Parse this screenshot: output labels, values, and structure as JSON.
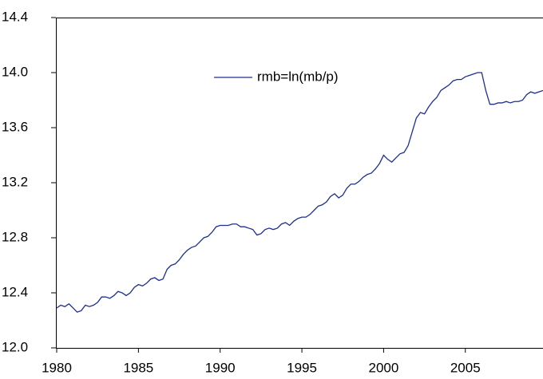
{
  "chart_data": {
    "type": "line",
    "x": [
      1980,
      1980.25,
      1980.5,
      1980.75,
      1981,
      1981.25,
      1981.5,
      1981.75,
      1982,
      1982.25,
      1982.5,
      1982.75,
      1983,
      1983.25,
      1983.5,
      1983.75,
      1984,
      1984.25,
      1984.5,
      1984.75,
      1985,
      1985.25,
      1985.5,
      1985.75,
      1986,
      1986.25,
      1986.5,
      1986.75,
      1987,
      1987.25,
      1987.5,
      1987.75,
      1988,
      1988.25,
      1988.5,
      1988.75,
      1989,
      1989.25,
      1989.5,
      1989.75,
      1990,
      1990.25,
      1990.5,
      1990.75,
      1991,
      1991.25,
      1991.5,
      1991.75,
      1992,
      1992.25,
      1992.5,
      1992.75,
      1993,
      1993.25,
      1993.5,
      1993.75,
      1994,
      1994.25,
      1994.5,
      1994.75,
      1995,
      1995.25,
      1995.5,
      1995.75,
      1996,
      1996.25,
      1996.5,
      1996.75,
      1997,
      1997.25,
      1997.5,
      1997.75,
      1998,
      1998.25,
      1998.5,
      1998.75,
      1999,
      1999.25,
      1999.5,
      1999.75,
      2000,
      2000.25,
      2000.5,
      2000.75,
      2001,
      2001.25,
      2001.5,
      2001.75,
      2002,
      2002.25,
      2002.5,
      2002.75,
      2003,
      2003.25,
      2003.5,
      2003.75,
      2004,
      2004.25,
      2004.5,
      2004.75,
      2005,
      2005.25,
      2005.5,
      2005.75,
      2006,
      2006.25,
      2006.5,
      2006.75,
      2007,
      2007.25,
      2007.5,
      2007.75,
      2008,
      2008.25,
      2008.5,
      2008.75,
      2009,
      2009.25,
      2009.5,
      2009.75
    ],
    "series": [
      {
        "name": "rmb=ln(mb/p)",
        "color": "#1f2f8f",
        "values": [
          12.29,
          12.31,
          12.3,
          12.32,
          12.29,
          12.26,
          12.27,
          12.31,
          12.3,
          12.31,
          12.33,
          12.37,
          12.37,
          12.36,
          12.38,
          12.41,
          12.4,
          12.38,
          12.4,
          12.44,
          12.46,
          12.45,
          12.47,
          12.5,
          12.51,
          12.49,
          12.5,
          12.57,
          12.6,
          12.61,
          12.64,
          12.68,
          12.71,
          12.73,
          12.74,
          12.77,
          12.8,
          12.81,
          12.84,
          12.88,
          12.89,
          12.89,
          12.89,
          12.9,
          12.9,
          12.88,
          12.88,
          12.87,
          12.86,
          12.82,
          12.83,
          12.86,
          12.87,
          12.86,
          12.87,
          12.9,
          12.91,
          12.89,
          12.92,
          12.94,
          12.95,
          12.95,
          12.97,
          13.0,
          13.03,
          13.04,
          13.06,
          13.1,
          13.12,
          13.09,
          13.11,
          13.16,
          13.19,
          13.19,
          13.21,
          13.24,
          13.26,
          13.27,
          13.3,
          13.34,
          13.4,
          13.37,
          13.35,
          13.38,
          13.41,
          13.42,
          13.47,
          13.57,
          13.67,
          13.71,
          13.7,
          13.75,
          13.79,
          13.82,
          13.87,
          13.89,
          13.91,
          13.94,
          13.95,
          13.95,
          13.97,
          13.98,
          13.99,
          14.0,
          14.0,
          13.87,
          13.77,
          13.77,
          13.78,
          13.78,
          13.79,
          13.78,
          13.79,
          13.79,
          13.8,
          13.84,
          13.86,
          13.85,
          13.86,
          13.87
        ]
      }
    ],
    "xlim": [
      1980,
      2009.75
    ],
    "xticks": [
      1980,
      1985,
      1990,
      1995,
      2000,
      2005
    ],
    "ylim": [
      12.0,
      14.4
    ],
    "yticks": [
      {
        "value": 12.0,
        "label": "12.0"
      },
      12.4,
      12.8,
      13.2,
      13.6,
      {
        "value": 14.0,
        "label": "14.0"
      },
      14.4
    ],
    "legend": "upper center"
  }
}
